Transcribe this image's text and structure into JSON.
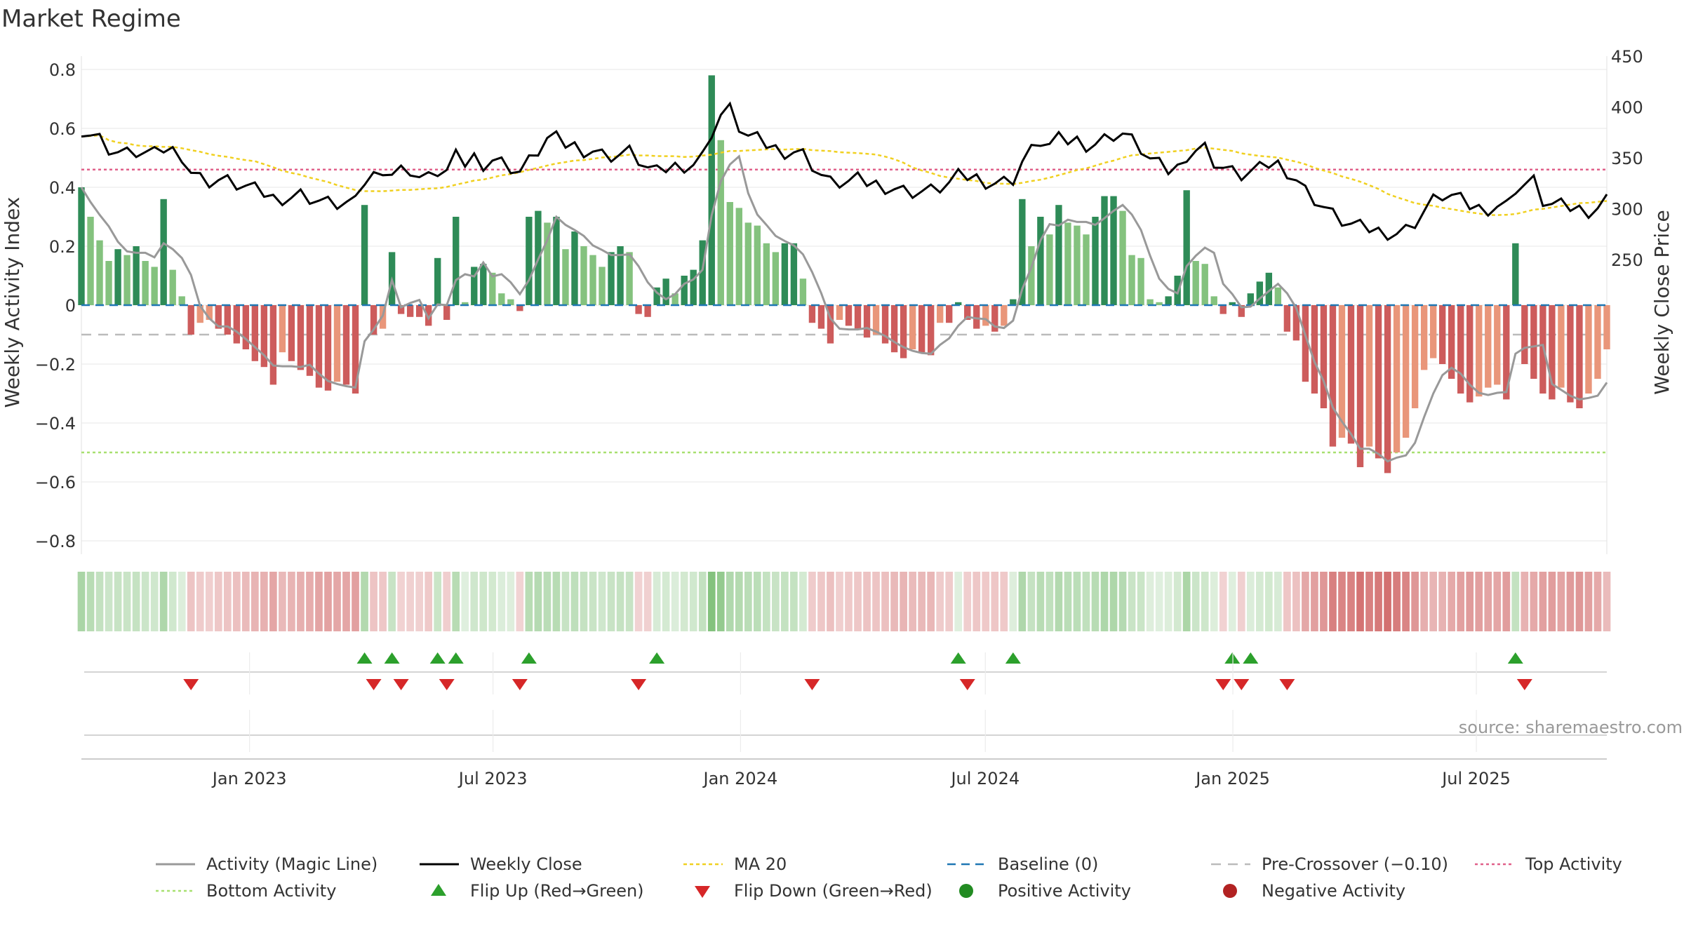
{
  "chart_data": {
    "type": "bar",
    "title": "Market Regime",
    "ylabel": "Weekly Activity Index",
    "y2label": "Weekly Close Price",
    "ylim": [
      -0.85,
      0.85
    ],
    "y2lim": [
      205,
      455
    ],
    "yticks": [
      "0.8",
      "0.6",
      "0.4",
      "0.2",
      "0",
      "−0.2",
      "−0.4",
      "−0.6",
      "−0.8"
    ],
    "y2ticks": [
      "450",
      "400",
      "350",
      "300",
      "250"
    ],
    "x_start": "2022-08-29",
    "x_end": "2025-10-06",
    "xticks": [
      {
        "date": "2023-01-01",
        "label": "Jan 2023"
      },
      {
        "date": "2023-07-01",
        "label": "Jul 2023"
      },
      {
        "date": "2024-01-01",
        "label": "Jan 2024"
      },
      {
        "date": "2024-07-01",
        "label": "Jul 2024"
      },
      {
        "date": "2025-01-01",
        "label": "Jan 2025"
      },
      {
        "date": "2025-07-01",
        "label": "Jul 2025"
      }
    ],
    "reference_lines": {
      "top_activity": 0.46,
      "bottom_activity": -0.5,
      "baseline": 0,
      "pre_crossover": -0.1
    },
    "activity": [
      0.4,
      0.3,
      0.22,
      0.15,
      0.19,
      0.17,
      0.2,
      0.15,
      0.13,
      0.36,
      0.12,
      0.03,
      -0.1,
      -0.06,
      -0.05,
      -0.08,
      -0.1,
      -0.13,
      -0.15,
      -0.19,
      -0.21,
      -0.27,
      -0.16,
      -0.19,
      -0.22,
      -0.24,
      -0.28,
      -0.29,
      -0.26,
      -0.27,
      -0.3,
      0.34,
      -0.1,
      -0.08,
      0.18,
      -0.03,
      -0.04,
      -0.04,
      -0.07,
      0.16,
      -0.05,
      0.3,
      0.01,
      0.13,
      0.14,
      0.11,
      0.04,
      0.02,
      -0.02,
      0.3,
      0.32,
      0.28,
      0.3,
      0.19,
      0.25,
      0.2,
      0.17,
      0.13,
      0.18,
      0.2,
      0.18,
      -0.03,
      -0.04,
      0.06,
      0.09,
      0.04,
      0.1,
      0.12,
      0.22,
      0.78,
      0.56,
      0.35,
      0.33,
      0.28,
      0.27,
      0.21,
      0.18,
      0.21,
      0.21,
      0.09,
      -0.06,
      -0.08,
      -0.13,
      -0.05,
      -0.07,
      -0.08,
      -0.11,
      -0.1,
      -0.13,
      -0.16,
      -0.18,
      -0.15,
      -0.16,
      -0.17,
      -0.06,
      -0.06,
      0.01,
      -0.05,
      -0.08,
      -0.07,
      -0.09,
      -0.07,
      0.02,
      0.36,
      0.2,
      0.3,
      0.24,
      0.34,
      0.28,
      0.27,
      0.24,
      0.3,
      0.37,
      0.37,
      0.32,
      0.17,
      0.16,
      0.02,
      0.01,
      0.03,
      0.1,
      0.39,
      0.15,
      0.14,
      0.03,
      -0.03,
      0.01,
      -0.04,
      0.04,
      0.08,
      0.11,
      0.06,
      -0.09,
      -0.12,
      -0.26,
      -0.3,
      -0.35,
      -0.48,
      -0.45,
      -0.47,
      -0.55,
      -0.48,
      -0.52,
      -0.57,
      -0.5,
      -0.45,
      -0.35,
      -0.22,
      -0.18,
      -0.2,
      -0.25,
      -0.3,
      -0.33,
      -0.31,
      -0.28,
      -0.27,
      -0.32,
      0.21,
      -0.2,
      -0.25,
      -0.3,
      -0.32,
      -0.28,
      -0.33,
      -0.35,
      -0.3,
      -0.25,
      -0.15
    ]
  },
  "legend": [
    {
      "key": "magic_line",
      "label": "Activity (Magic Line)"
    },
    {
      "key": "weekly_close",
      "label": "Weekly Close"
    },
    {
      "key": "ma20",
      "label": "MA 20"
    },
    {
      "key": "baseline",
      "label": "Baseline (0)"
    },
    {
      "key": "pre_crossover",
      "label": "Pre-Crossover (−0.10)"
    },
    {
      "key": "top_activity",
      "label": "Top Activity"
    },
    {
      "key": "bottom_activity",
      "label": "Bottom Activity"
    },
    {
      "key": "flip_up",
      "label": "Flip Up (Red→Green)"
    },
    {
      "key": "flip_down",
      "label": "Flip Down (Green→Red)"
    },
    {
      "key": "positive",
      "label": "Positive Activity"
    },
    {
      "key": "negative",
      "label": "Negative Activity"
    }
  ],
  "source": "source: sharemaestro.com",
  "colors": {
    "green_dark": "#2e8b57",
    "green_light": "#84c27e",
    "red_dark": "#cd5c5c",
    "red_light": "#e9967a",
    "close": "#000000",
    "magic": "#999999",
    "ma20": "#f0d020",
    "baseline": "#1f77b4",
    "precross": "#bbbbbb",
    "top": "#e0608a",
    "bottom": "#a8e070",
    "flip_up": "#2ca02c",
    "flip_down": "#d62728",
    "pos_dot": "#228b22",
    "neg_dot": "#b22222"
  }
}
